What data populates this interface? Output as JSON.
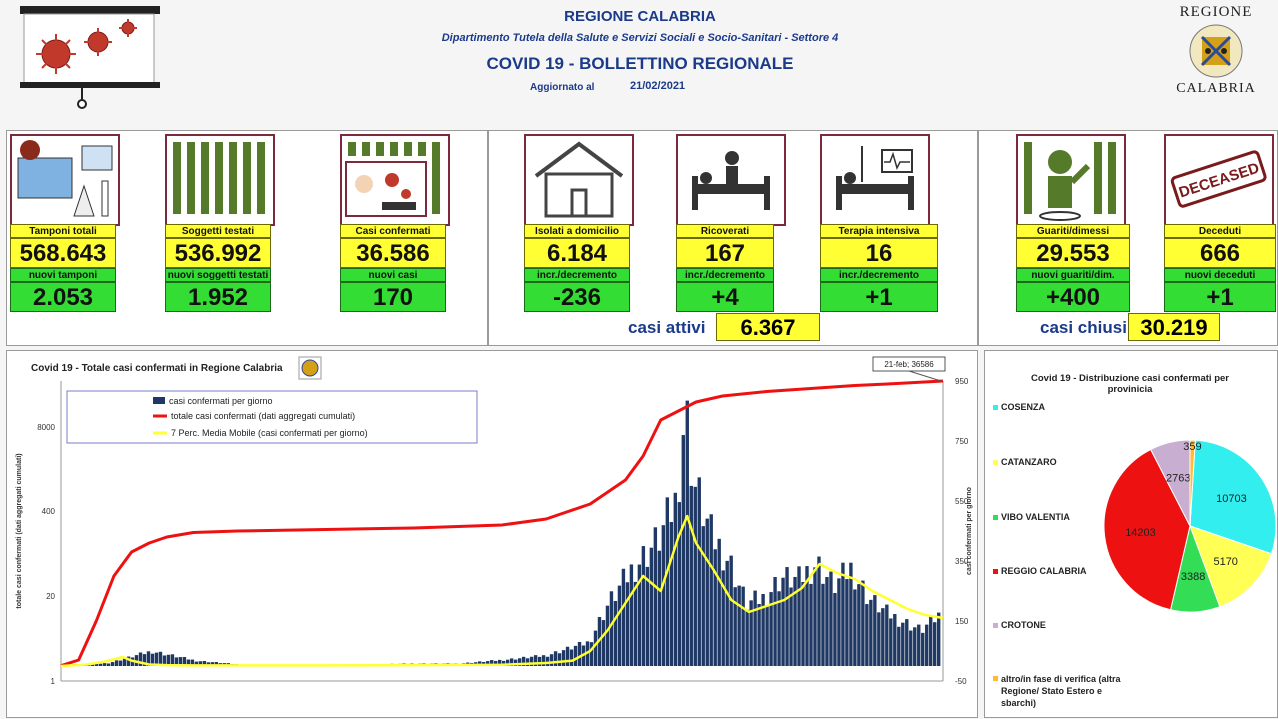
{
  "header": {
    "region": "REGIONE CALABRIA",
    "department": "Dipartimento Tutela della Salute e Servizi Sociali e Socio-Sanitari - Settore 4",
    "title": "COVID 19 - BOLLETTINO REGIONALE",
    "updated_label": "Aggiornato al",
    "updated_date": "21/02/2021",
    "logo_top": "REGIONE",
    "logo_bottom": "CALABRIA"
  },
  "cards": [
    {
      "label": "Tamponi totali",
      "value": "568.643",
      "sub_label": "nuovi tamponi",
      "sub_value": "2.053"
    },
    {
      "label": "Soggetti testati",
      "value": "536.992",
      "sub_label": "nuovi soggetti testati",
      "sub_value": "1.952"
    },
    {
      "label": "Casi confermati",
      "value": "36.586",
      "sub_label": "nuovi casi",
      "sub_value": "170"
    },
    {
      "label": "Isolati a domicilio",
      "value": "6.184",
      "sub_label": "incr./decremento",
      "sub_value": "-236"
    },
    {
      "label": "Ricoverati",
      "value": "167",
      "sub_label": "incr./decremento",
      "sub_value": "+4"
    },
    {
      "label": "Terapia intensiva",
      "value": "16",
      "sub_label": "incr./decremento",
      "sub_value": "+1"
    },
    {
      "label": "Guariti/dimessi",
      "value": "29.553",
      "sub_label": "nuovi guariti/dim.",
      "sub_value": "+400"
    },
    {
      "label": "Deceduti",
      "value": "666",
      "sub_label": "nuovi deceduti",
      "sub_value": "+1"
    }
  ],
  "deceased_stamp": "DECEASED",
  "summary": {
    "active_label": "casi attivi",
    "active_value": "6.367",
    "closed_label": "casi chiusi",
    "closed_value": "30.219"
  },
  "line_chart_title": "Covid 19 - Totale casi confermati in Regione Calabria",
  "pie_chart_title": "Covid 19 - Distribuzione casi confermati per provinicia",
  "chart_data": [
    {
      "type": "bar",
      "title": "Covid 19 - Totale casi confermati in Regione Calabria",
      "ylabel": "totale casi confermati (dati aggregati cumulati)",
      "ylabel_right": "casi confermati per giorno",
      "y_left_ticks": [
        "8000",
        "400",
        "20",
        "1"
      ],
      "y_right_ticks": [
        "950",
        "750",
        "550",
        "350",
        "150",
        "-50"
      ],
      "y_right_lim": [
        -50,
        950
      ],
      "annotation": "21-feb; 36586",
      "legend": [
        "casi confermati per giorno",
        "totale casi confermati (dati aggregati cumulati)",
        "7 Perc. Media Mobile (casi confermati per giorno)"
      ],
      "colors": {
        "daily": "#1f3864",
        "cumulative": "#ee1111",
        "moving_avg": "#ffff33"
      },
      "series": [
        {
          "name": "casi confermati per giorno",
          "x_pct": [
            0,
            5,
            10,
            15,
            20,
            25,
            30,
            35,
            40,
            45,
            50,
            55,
            60,
            62,
            65,
            68,
            70,
            71,
            72,
            74,
            76,
            78,
            80,
            82,
            84,
            86,
            88,
            90,
            92,
            94,
            96,
            98,
            100
          ],
          "values": [
            0,
            10,
            50,
            18,
            5,
            3,
            3,
            5,
            8,
            8,
            20,
            35,
            80,
            200,
            330,
            430,
            560,
            880,
            620,
            440,
            360,
            210,
            230,
            300,
            290,
            350,
            270,
            330,
            230,
            180,
            150,
            120,
            170
          ]
        },
        {
          "name": "totale casi confermati (dati aggregati cumulati)",
          "x_pct": [
            0,
            2,
            4,
            6,
            8,
            10,
            12,
            15,
            20,
            30,
            40,
            50,
            55,
            60,
            64,
            66,
            68,
            70,
            72,
            75,
            80,
            85,
            90,
            95,
            100
          ],
          "values": [
            1,
            20,
            150,
            300,
            380,
            410,
            430,
            445,
            450,
            455,
            460,
            470,
            490,
            540,
            620,
            700,
            820,
            850,
            880,
            900,
            915,
            925,
            935,
            942,
            950
          ]
        },
        {
          "name": "7 Perc. Media Mobile (casi confermati per giorno)",
          "x_pct": [
            0,
            3,
            5,
            7,
            8,
            10,
            12,
            15,
            20,
            30,
            40,
            50,
            55,
            58,
            60,
            62,
            64,
            66,
            68,
            70,
            71,
            72,
            74,
            76,
            78,
            80,
            82,
            84,
            86,
            88,
            90,
            92,
            94,
            96,
            98,
            100
          ],
          "values": [
            0,
            5,
            15,
            30,
            18,
            5,
            3,
            2,
            2,
            2,
            3,
            4,
            10,
            18,
            50,
            120,
            210,
            300,
            250,
            430,
            500,
            410,
            320,
            220,
            180,
            200,
            220,
            260,
            340,
            310,
            290,
            250,
            220,
            190,
            170,
            160
          ]
        }
      ]
    },
    {
      "type": "pie",
      "title": "Covid 19 - Distribuzione casi confermati per provinicia",
      "categories": [
        "COSENZA",
        "CATANZARO",
        "VIBO VALENTIA",
        "REGGIO CALABRIA",
        "CROTONE",
        "altro/in fase di verifica (altra Regione/ Stato Estero e sbarchi)"
      ],
      "values": [
        10703,
        5170,
        3388,
        14203,
        2763,
        359
      ],
      "colors": [
        "#33eeee",
        "#ffff55",
        "#33dd55",
        "#ee1111",
        "#c8aed0",
        "#ffbb33"
      ]
    }
  ]
}
